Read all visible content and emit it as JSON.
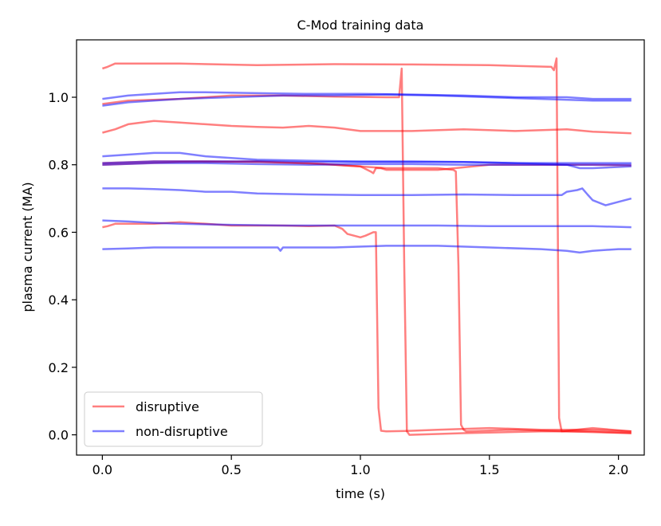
{
  "chart_data": {
    "type": "line",
    "title": "C-Mod training data",
    "xlabel": "time (s)",
    "ylabel": "plasma current (MA)",
    "xlim": [
      -0.1,
      2.1
    ],
    "ylim": [
      -0.06,
      1.17
    ],
    "xticks": [
      0.0,
      0.5,
      1.0,
      1.5,
      2.0
    ],
    "xtick_labels": [
      "0.0",
      "0.5",
      "1.0",
      "1.5",
      "2.0"
    ],
    "yticks": [
      0.0,
      0.2,
      0.4,
      0.6,
      0.8,
      1.0
    ],
    "ytick_labels": [
      "0.0",
      "0.2",
      "0.4",
      "0.6",
      "0.8",
      "1.0"
    ],
    "grid": false,
    "legend": {
      "location": "lower left",
      "entries": [
        {
          "label": "disruptive",
          "color": "#ff0000"
        },
        {
          "label": "non-disruptive",
          "color": "#0000ff"
        }
      ]
    },
    "series": [
      {
        "name": "disruptive",
        "color": "#ff0000",
        "x": [
          0.0,
          0.02,
          0.05,
          0.3,
          0.6,
          0.9,
          1.2,
          1.5,
          1.74,
          1.75,
          1.76,
          1.765,
          1.77,
          1.78,
          1.9,
          2.05
        ],
        "y": [
          1.085,
          1.09,
          1.1,
          1.1,
          1.095,
          1.098,
          1.097,
          1.095,
          1.09,
          1.08,
          1.115,
          0.6,
          0.05,
          0.01,
          0.02,
          0.01
        ]
      },
      {
        "name": "disruptive",
        "color": "#ff0000",
        "x": [
          0.0,
          0.1,
          0.3,
          0.5,
          0.7,
          0.9,
          1.1,
          1.14,
          1.15,
          1.16,
          1.17,
          1.18,
          1.19,
          1.4,
          1.7,
          1.9,
          2.05
        ],
        "y": [
          0.98,
          0.99,
          0.995,
          1.005,
          1.005,
          1.002,
          1.0,
          1.0,
          1.0,
          1.085,
          0.5,
          0.01,
          0.0,
          0.005,
          0.01,
          0.01,
          0.005
        ]
      },
      {
        "name": "disruptive",
        "color": "#ff0000",
        "x": [
          0.0,
          0.05,
          0.1,
          0.2,
          0.3,
          0.4,
          0.5,
          0.6,
          0.7,
          0.8,
          0.9,
          1.0,
          1.2,
          1.4,
          1.6,
          1.8,
          1.9,
          2.05
        ],
        "y": [
          0.895,
          0.905,
          0.92,
          0.93,
          0.925,
          0.92,
          0.915,
          0.912,
          0.91,
          0.915,
          0.91,
          0.9,
          0.9,
          0.905,
          0.9,
          0.905,
          0.898,
          0.893
        ]
      },
      {
        "name": "disruptive",
        "color": "#ff0000",
        "x": [
          0.0,
          0.2,
          0.4,
          0.6,
          0.8,
          1.0,
          1.04,
          1.05,
          1.06,
          1.07,
          1.08,
          1.1,
          1.3,
          1.5,
          1.7,
          1.9,
          2.05
        ],
        "y": [
          0.805,
          0.81,
          0.81,
          0.808,
          0.805,
          0.795,
          0.78,
          0.775,
          0.79,
          0.79,
          0.79,
          0.785,
          0.785,
          0.8,
          0.8,
          0.8,
          0.798
        ]
      },
      {
        "name": "disruptive",
        "color": "#ff0000",
        "x": [
          0.0,
          0.3,
          0.6,
          0.9,
          1.1,
          1.3,
          1.36,
          1.37,
          1.38,
          1.39,
          1.4,
          1.41,
          1.6,
          1.8,
          2.05
        ],
        "y": [
          0.8,
          0.808,
          0.81,
          0.8,
          0.79,
          0.79,
          0.785,
          0.78,
          0.5,
          0.03,
          0.015,
          0.01,
          0.015,
          0.01,
          0.005
        ]
      },
      {
        "name": "disruptive",
        "color": "#ff0000",
        "x": [
          0.0,
          0.02,
          0.05,
          0.1,
          0.2,
          0.3,
          0.4,
          0.5,
          0.6,
          0.7,
          0.8,
          0.9,
          0.93,
          0.95,
          1.0,
          1.02,
          1.05,
          1.06,
          1.07,
          1.08,
          1.1,
          1.2,
          1.3,
          1.5,
          1.7,
          1.9,
          2.05
        ],
        "y": [
          0.615,
          0.618,
          0.625,
          0.625,
          0.625,
          0.63,
          0.625,
          0.62,
          0.62,
          0.62,
          0.618,
          0.62,
          0.61,
          0.595,
          0.585,
          0.59,
          0.6,
          0.6,
          0.08,
          0.012,
          0.01,
          0.012,
          0.015,
          0.02,
          0.015,
          0.015,
          0.01
        ]
      },
      {
        "name": "non-disruptive",
        "color": "#0000ff",
        "x": [
          0.0,
          0.1,
          0.2,
          0.3,
          0.4,
          0.6,
          0.8,
          1.0,
          1.2,
          1.4,
          1.6,
          1.8,
          1.9,
          2.05
        ],
        "y": [
          0.995,
          1.005,
          1.01,
          1.015,
          1.015,
          1.012,
          1.01,
          1.01,
          1.008,
          1.005,
          1.0,
          1.0,
          0.995,
          0.995
        ]
      },
      {
        "name": "non-disruptive",
        "color": "#0000ff",
        "x": [
          0.0,
          0.1,
          0.2,
          0.3,
          0.5,
          0.7,
          0.9,
          1.1,
          1.3,
          1.5,
          1.7,
          1.9,
          2.05
        ],
        "y": [
          0.975,
          0.985,
          0.99,
          0.995,
          1.0,
          1.005,
          1.005,
          1.008,
          1.005,
          1.0,
          0.995,
          0.99,
          0.99
        ]
      },
      {
        "name": "non-disruptive",
        "color": "#0000ff",
        "x": [
          0.0,
          0.1,
          0.2,
          0.3,
          0.4,
          0.6,
          0.8,
          1.0,
          1.2,
          1.4,
          1.6,
          1.8,
          1.85,
          1.9,
          2.05
        ],
        "y": [
          0.825,
          0.83,
          0.835,
          0.835,
          0.825,
          0.815,
          0.812,
          0.81,
          0.81,
          0.808,
          0.805,
          0.8,
          0.79,
          0.79,
          0.795
        ]
      },
      {
        "name": "non-disruptive",
        "color": "#0000ff",
        "x": [
          0.0,
          0.2,
          0.4,
          0.6,
          0.8,
          1.0,
          1.2,
          1.4,
          1.6,
          1.8,
          2.05
        ],
        "y": [
          0.805,
          0.81,
          0.81,
          0.81,
          0.808,
          0.808,
          0.808,
          0.808,
          0.805,
          0.805,
          0.805
        ]
      },
      {
        "name": "non-disruptive",
        "color": "#0000ff",
        "x": [
          0.0,
          0.2,
          0.4,
          0.6,
          0.8,
          1.0,
          1.2,
          1.4,
          1.6,
          1.8,
          2.05
        ],
        "y": [
          0.8,
          0.805,
          0.805,
          0.802,
          0.8,
          0.802,
          0.802,
          0.8,
          0.8,
          0.8,
          0.8
        ]
      },
      {
        "name": "non-disruptive",
        "color": "#0000ff",
        "x": [
          0.0,
          0.1,
          0.2,
          0.3,
          0.4,
          0.5,
          0.6,
          0.8,
          1.0,
          1.2,
          1.4,
          1.6,
          1.78,
          1.8,
          1.84,
          1.86,
          1.88,
          1.9,
          1.95,
          2.0,
          2.05
        ],
        "y": [
          0.73,
          0.73,
          0.728,
          0.725,
          0.72,
          0.72,
          0.715,
          0.712,
          0.71,
          0.71,
          0.712,
          0.71,
          0.71,
          0.72,
          0.725,
          0.73,
          0.712,
          0.695,
          0.68,
          0.69,
          0.7
        ]
      },
      {
        "name": "non-disruptive",
        "color": "#0000ff",
        "x": [
          0.0,
          0.1,
          0.2,
          0.3,
          0.5,
          0.7,
          0.9,
          1.1,
          1.3,
          1.5,
          1.7,
          1.9,
          2.05
        ],
        "y": [
          0.635,
          0.632,
          0.628,
          0.625,
          0.622,
          0.62,
          0.62,
          0.62,
          0.62,
          0.618,
          0.618,
          0.618,
          0.615
        ]
      },
      {
        "name": "non-disruptive",
        "color": "#0000ff",
        "x": [
          0.0,
          0.1,
          0.2,
          0.3,
          0.5,
          0.68,
          0.69,
          0.7,
          0.9,
          1.1,
          1.3,
          1.5,
          1.7,
          1.8,
          1.85,
          1.9,
          2.0,
          2.05
        ],
        "y": [
          0.55,
          0.552,
          0.555,
          0.555,
          0.555,
          0.555,
          0.545,
          0.555,
          0.555,
          0.56,
          0.56,
          0.555,
          0.55,
          0.545,
          0.54,
          0.545,
          0.55,
          0.55
        ]
      }
    ]
  }
}
